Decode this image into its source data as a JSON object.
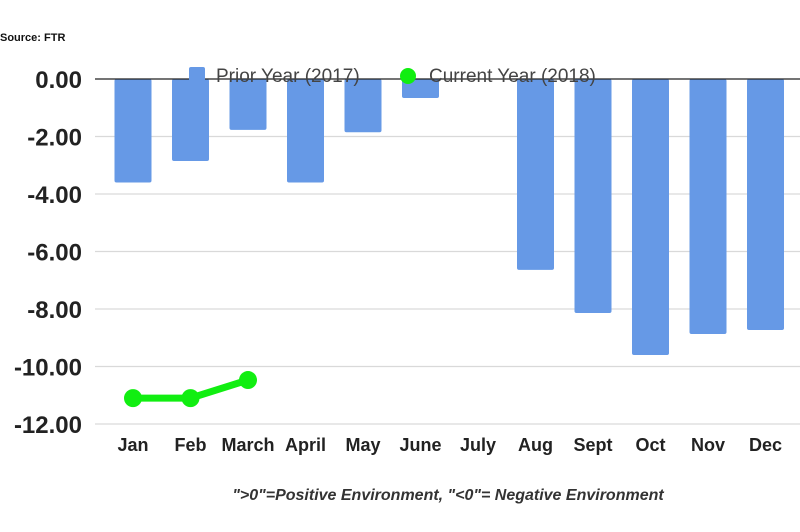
{
  "source_label": "Source: FTR",
  "footnote": "\">0\"=Positive Environment, \"<0\"= Negative Environment",
  "colors": {
    "prior": "#6699e6",
    "current": "#11ee11",
    "grid": "#d9d9d9",
    "zero_line": "#222222"
  },
  "chart_data": {
    "type": "bar",
    "categories": [
      "Jan",
      "Feb",
      "March",
      "April",
      "May",
      "June",
      "July",
      "Aug",
      "Sept",
      "Oct",
      "Nov",
      "Dec"
    ],
    "series": [
      {
        "name": "Prior Year (2017)",
        "type": "bar",
        "values": [
          -3.6,
          -2.85,
          -1.77,
          -3.6,
          -1.85,
          -0.66,
          0,
          -6.64,
          -8.14,
          -9.6,
          -8.87,
          -8.73
        ]
      },
      {
        "name": "Current Year (2018)",
        "type": "line",
        "values": [
          -11.1,
          -11.1,
          -10.47,
          null,
          null,
          null,
          null,
          null,
          null,
          null,
          null,
          null
        ]
      }
    ],
    "yticks": [
      "0.00",
      "-2.00",
      "-4.00",
      "-6.00",
      "-8.00",
      "-10.00",
      "-12.00"
    ],
    "ylim": [
      -12,
      0
    ],
    "grid": true,
    "legend_position": "top"
  }
}
